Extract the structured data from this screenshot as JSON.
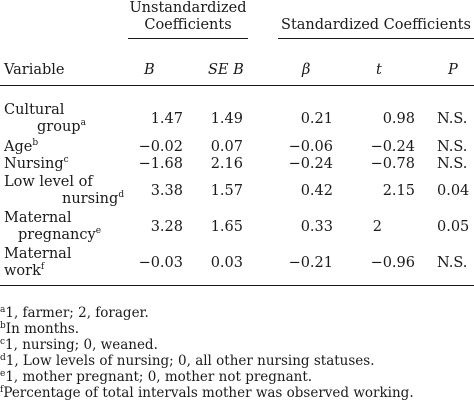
{
  "header": {
    "group1_line1": "Unstandardized",
    "group1_line2": "Coefficients",
    "group2": "Standardized Coefficients",
    "col_variable": "Variable",
    "col_b": "B",
    "col_seb": "SE B",
    "col_beta": "β",
    "col_t": "t",
    "col_p": "P"
  },
  "rows": [
    {
      "label1": "Cultural",
      "label2": "group",
      "sup": "a",
      "b": "1.47",
      "seb": "1.49",
      "beta": "0.21",
      "t": "0.98",
      "p": "N.S."
    },
    {
      "label1": "Age",
      "sup": "b",
      "b": "−0.02",
      "seb": "0.07",
      "beta": "−0.06",
      "t": "−0.24",
      "p": "N.S."
    },
    {
      "label1": "Nursing",
      "sup": "c",
      "b": "−1.68",
      "seb": "2.16",
      "beta": "−0.24",
      "t": "−0.78",
      "p": "N.S."
    },
    {
      "label1": "Low level of",
      "label2": "nursing",
      "sup": "d",
      "b": "3.38",
      "seb": "1.57",
      "beta": "0.42",
      "t": "2.15",
      "p": "0.04"
    },
    {
      "label1": "Maternal",
      "label2": "pregnancy",
      "sup": "e",
      "b": "3.28",
      "seb": "1.65",
      "beta": "0.33",
      "t": "2",
      "p": "0.05"
    },
    {
      "label1": "Maternal",
      "label2": "work",
      "sup": "f",
      "b": "−0.03",
      "seb": "0.03",
      "beta": "−0.21",
      "t": "−0.96",
      "p": "N.S."
    }
  ],
  "footnotes": [
    {
      "mark": "a",
      "text": "1, farmer; 2, forager."
    },
    {
      "mark": "b",
      "text": "In months."
    },
    {
      "mark": "c",
      "text": "1, nursing; 0, weaned."
    },
    {
      "mark": "d",
      "text": "1, Low levels of nursing; 0, all other nursing statuses."
    },
    {
      "mark": "e",
      "text": "1, mother pregnant; 0, mother not pregnant."
    },
    {
      "mark": "f",
      "text": "Percentage of total intervals mother was observed working."
    }
  ]
}
